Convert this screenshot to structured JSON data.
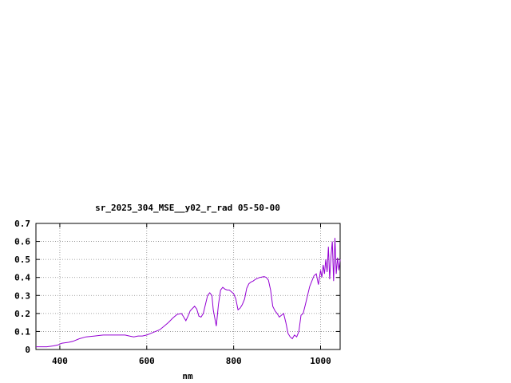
{
  "chart_data": {
    "type": "line",
    "title": "sr_2025_304_MSE__y02_r_rad 05-50-00",
    "xlabel": "nm",
    "ylabel": "",
    "xlim": [
      345,
      1045
    ],
    "ylim": [
      0,
      0.7
    ],
    "xticks": [
      400,
      600,
      800,
      1000
    ],
    "yticks": [
      0,
      0.1,
      0.2,
      0.3,
      0.4,
      0.5,
      0.6,
      0.7
    ],
    "xtick_labels": [
      "400",
      "600",
      "800",
      "1000"
    ],
    "ytick_labels": [
      "0",
      "0.1",
      "0.2",
      "0.3",
      "0.4",
      "0.5",
      "0.6",
      "0.7"
    ],
    "grid": true,
    "legend": "none",
    "series_color": "#9400d3",
    "series": [
      {
        "x": [
          345,
          370,
          385,
          395,
          405,
          420,
          430,
          445,
          460,
          480,
          500,
          520,
          540,
          550,
          560,
          570,
          580,
          590,
          600,
          610,
          620,
          630,
          640,
          650,
          660,
          670,
          680,
          685,
          690,
          695,
          700,
          710,
          715,
          720,
          725,
          730,
          735,
          740,
          745,
          750,
          753,
          757,
          760,
          765,
          770,
          775,
          780,
          785,
          790,
          800,
          805,
          810,
          815,
          820,
          825,
          830,
          835,
          840,
          845,
          850,
          860,
          870,
          875,
          880,
          885,
          890,
          895,
          900,
          905,
          910,
          915,
          920,
          925,
          930,
          935,
          940,
          945,
          950,
          955,
          960,
          965,
          970,
          975,
          980,
          985,
          990,
          995,
          1000,
          1003,
          1006,
          1009,
          1012,
          1015,
          1018,
          1021,
          1024,
          1027,
          1030,
          1033,
          1036,
          1039,
          1042,
          1045
        ],
        "y": [
          0.015,
          0.015,
          0.02,
          0.025,
          0.035,
          0.04,
          0.045,
          0.06,
          0.07,
          0.075,
          0.08,
          0.08,
          0.08,
          0.08,
          0.075,
          0.07,
          0.075,
          0.075,
          0.08,
          0.09,
          0.1,
          0.11,
          0.13,
          0.15,
          0.175,
          0.195,
          0.2,
          0.18,
          0.16,
          0.185,
          0.215,
          0.24,
          0.225,
          0.185,
          0.18,
          0.2,
          0.25,
          0.3,
          0.315,
          0.3,
          0.22,
          0.17,
          0.13,
          0.25,
          0.33,
          0.345,
          0.335,
          0.33,
          0.33,
          0.31,
          0.28,
          0.22,
          0.23,
          0.25,
          0.28,
          0.34,
          0.365,
          0.375,
          0.38,
          0.39,
          0.4,
          0.405,
          0.4,
          0.385,
          0.33,
          0.24,
          0.215,
          0.2,
          0.18,
          0.19,
          0.2,
          0.15,
          0.09,
          0.07,
          0.06,
          0.08,
          0.07,
          0.1,
          0.19,
          0.2,
          0.25,
          0.3,
          0.35,
          0.38,
          0.41,
          0.42,
          0.36,
          0.44,
          0.4,
          0.47,
          0.42,
          0.5,
          0.43,
          0.57,
          0.39,
          0.52,
          0.6,
          0.38,
          0.62,
          0.42,
          0.51,
          0.44,
          0.5
        ]
      }
    ]
  }
}
